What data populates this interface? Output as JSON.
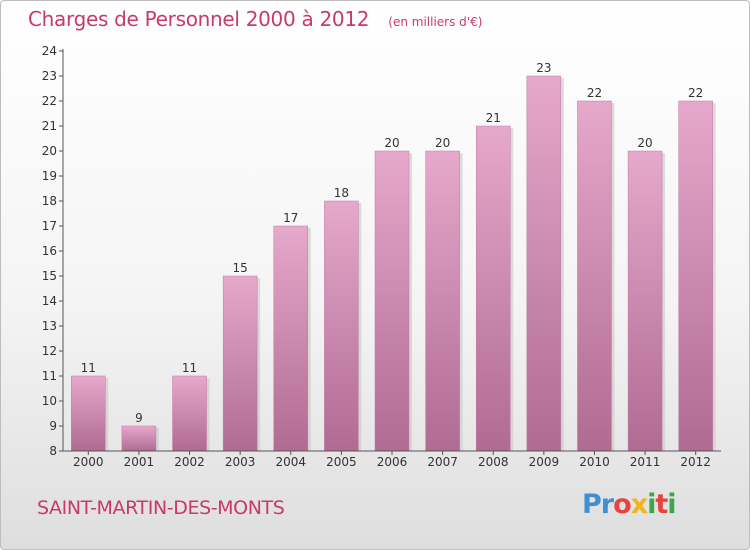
{
  "chart_data": {
    "type": "bar",
    "title": "Charges de Personnel 2000 à 2012",
    "subtitle": "(en milliers d'€)",
    "categories": [
      "2000",
      "2001",
      "2002",
      "2003",
      "2004",
      "2005",
      "2006",
      "2007",
      "2008",
      "2009",
      "2010",
      "2011",
      "2012"
    ],
    "values": [
      11,
      9,
      11,
      15,
      17,
      18,
      20,
      20,
      21,
      23,
      22,
      20,
      22
    ],
    "ylim": [
      8,
      24
    ],
    "yticks": [
      "8",
      "9",
      "10",
      "11",
      "12",
      "13",
      "14",
      "15",
      "16",
      "17",
      "18",
      "19",
      "20",
      "21",
      "22",
      "23",
      "24"
    ],
    "grid": false,
    "bar_color": "#d989b5"
  },
  "footer": {
    "commune": "SAINT-MARTIN-DES-MONTS",
    "logo_letters": [
      {
        "ch": "P",
        "color": "#3f8fd2"
      },
      {
        "ch": "r",
        "color": "#3f8fd2"
      },
      {
        "ch": "o",
        "color": "#e8433c"
      },
      {
        "ch": "x",
        "color": "#f2b31c"
      },
      {
        "ch": "i",
        "color": "#3aa84a"
      },
      {
        "ch": "t",
        "color": "#e8433c"
      },
      {
        "ch": "i",
        "color": "#3aa84a"
      }
    ]
  },
  "colors": {
    "title": "#c8396e",
    "bar_light": "#e6a8cb",
    "bar_dark": "#b06b93"
  }
}
